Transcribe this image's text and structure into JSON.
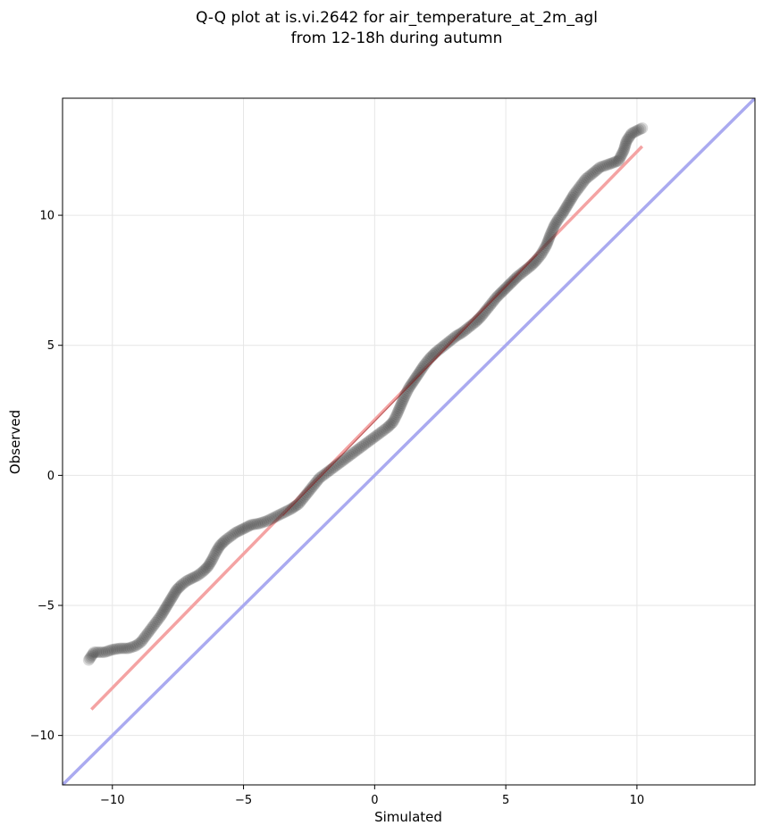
{
  "chart_data": {
    "type": "scatter",
    "title_line1": "Q-Q plot at is.vi.2642 for air_temperature_at_2m_agl",
    "title_line2": "from 12-18h during autumn",
    "xlabel": "Simulated",
    "ylabel": "Observed",
    "xlim": [
      -11.9,
      14.5
    ],
    "ylim": [
      -11.9,
      14.5
    ],
    "xticks": [
      -10,
      -5,
      0,
      5,
      10
    ],
    "yticks": [
      -10,
      -5,
      0,
      5,
      10
    ],
    "xtick_labels": [
      "−10",
      "−5",
      "0",
      "5",
      "10"
    ],
    "ytick_labels": [
      "−10",
      "−5",
      "0",
      "5",
      "10"
    ],
    "grid": true,
    "points_color": "#333333",
    "quantile_points": [
      [
        -10.9,
        -7.1
      ],
      [
        -10.7,
        -6.8
      ],
      [
        -10.3,
        -6.8
      ],
      [
        -10.0,
        -6.7
      ],
      [
        -9.7,
        -6.65
      ],
      [
        -9.4,
        -6.65
      ],
      [
        -9.1,
        -6.55
      ],
      [
        -8.9,
        -6.4
      ],
      [
        -8.75,
        -6.2
      ],
      [
        -8.6,
        -6.0
      ],
      [
        -8.45,
        -5.8
      ],
      [
        -8.3,
        -5.6
      ],
      [
        -8.15,
        -5.4
      ],
      [
        -8.0,
        -5.15
      ],
      [
        -7.85,
        -4.9
      ],
      [
        -7.7,
        -4.65
      ],
      [
        -7.55,
        -4.4
      ],
      [
        -7.35,
        -4.2
      ],
      [
        -7.15,
        -4.05
      ],
      [
        -6.95,
        -3.95
      ],
      [
        -6.75,
        -3.85
      ],
      [
        -6.55,
        -3.7
      ],
      [
        -6.35,
        -3.5
      ],
      [
        -6.2,
        -3.25
      ],
      [
        -6.05,
        -2.95
      ],
      [
        -5.9,
        -2.7
      ],
      [
        -5.7,
        -2.5
      ],
      [
        -5.5,
        -2.35
      ],
      [
        -5.3,
        -2.2
      ],
      [
        -5.1,
        -2.1
      ],
      [
        -4.9,
        -2.0
      ],
      [
        -4.7,
        -1.9
      ],
      [
        -4.4,
        -1.85
      ],
      [
        -4.1,
        -1.75
      ],
      [
        -3.8,
        -1.6
      ],
      [
        -3.5,
        -1.45
      ],
      [
        -3.2,
        -1.3
      ],
      [
        -2.9,
        -1.1
      ],
      [
        -2.7,
        -0.85
      ],
      [
        -2.5,
        -0.6
      ],
      [
        -2.3,
        -0.35
      ],
      [
        -2.1,
        -0.1
      ],
      [
        -1.9,
        0.05
      ],
      [
        -1.7,
        0.2
      ],
      [
        -1.5,
        0.35
      ],
      [
        -1.3,
        0.5
      ],
      [
        -1.1,
        0.65
      ],
      [
        -0.9,
        0.8
      ],
      [
        -0.7,
        0.95
      ],
      [
        -0.5,
        1.1
      ],
      [
        -0.3,
        1.25
      ],
      [
        -0.1,
        1.4
      ],
      [
        0.1,
        1.55
      ],
      [
        0.3,
        1.7
      ],
      [
        0.5,
        1.85
      ],
      [
        0.7,
        2.05
      ],
      [
        0.85,
        2.35
      ],
      [
        1.0,
        2.7
      ],
      [
        1.15,
        3.05
      ],
      [
        1.3,
        3.35
      ],
      [
        1.5,
        3.65
      ],
      [
        1.7,
        3.95
      ],
      [
        1.9,
        4.25
      ],
      [
        2.1,
        4.5
      ],
      [
        2.35,
        4.75
      ],
      [
        2.6,
        4.95
      ],
      [
        2.85,
        5.15
      ],
      [
        3.1,
        5.35
      ],
      [
        3.35,
        5.5
      ],
      [
        3.6,
        5.7
      ],
      [
        3.85,
        5.9
      ],
      [
        4.05,
        6.1
      ],
      [
        4.25,
        6.35
      ],
      [
        4.45,
        6.6
      ],
      [
        4.65,
        6.85
      ],
      [
        4.85,
        7.05
      ],
      [
        5.05,
        7.25
      ],
      [
        5.25,
        7.45
      ],
      [
        5.45,
        7.65
      ],
      [
        5.7,
        7.85
      ],
      [
        5.95,
        8.05
      ],
      [
        6.15,
        8.25
      ],
      [
        6.35,
        8.5
      ],
      [
        6.55,
        8.85
      ],
      [
        6.7,
        9.25
      ],
      [
        6.85,
        9.6
      ],
      [
        7.0,
        9.85
      ],
      [
        7.15,
        10.05
      ],
      [
        7.3,
        10.3
      ],
      [
        7.45,
        10.55
      ],
      [
        7.6,
        10.8
      ],
      [
        7.75,
        11.0
      ],
      [
        7.9,
        11.2
      ],
      [
        8.05,
        11.4
      ],
      [
        8.3,
        11.6
      ],
      [
        8.6,
        11.85
      ],
      [
        8.9,
        11.95
      ],
      [
        9.3,
        12.1
      ],
      [
        9.5,
        12.5
      ],
      [
        9.6,
        12.85
      ],
      [
        9.8,
        13.15
      ],
      [
        10.2,
        13.35
      ]
    ],
    "fit_line": {
      "color": "#f4a3a3",
      "x": [
        -10.8,
        10.2
      ],
      "y": [
        -9.0,
        12.65
      ]
    },
    "identity_line": {
      "color": "#aaaaf0",
      "x": [
        -11.9,
        14.5
      ],
      "y": [
        -11.9,
        14.5
      ]
    }
  }
}
